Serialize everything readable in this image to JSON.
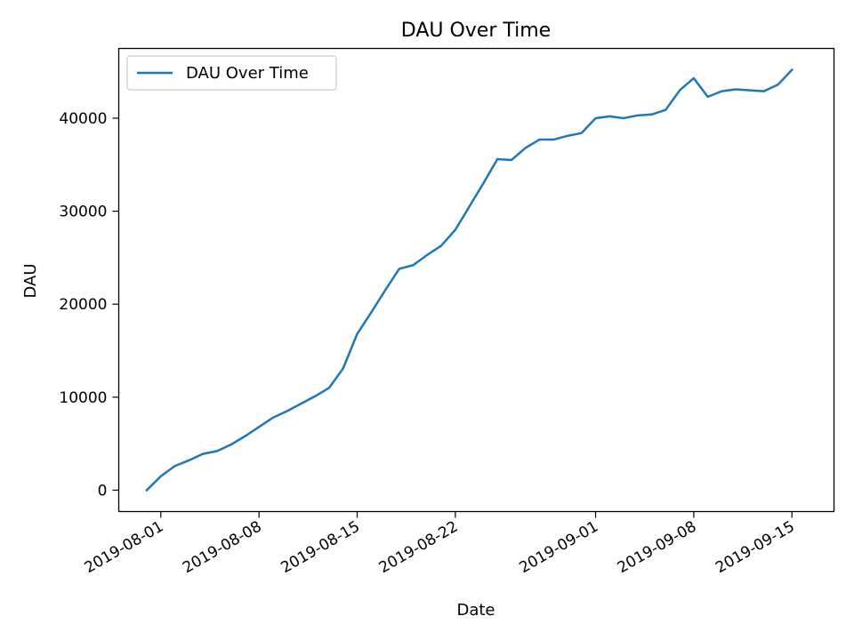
{
  "chart_data": {
    "type": "line",
    "title": "DAU Over Time",
    "xlabel": "Date",
    "ylabel": "DAU",
    "x_type": "date",
    "xlim": [
      "2019-07-29",
      "2019-09-18"
    ],
    "ylim": [
      -2300,
      47500
    ],
    "x_ticks": [
      "2019-08-01",
      "2019-08-08",
      "2019-08-15",
      "2019-08-22",
      "2019-09-01",
      "2019-09-08",
      "2019-09-15"
    ],
    "y_ticks": [
      0,
      10000,
      20000,
      30000,
      40000
    ],
    "legend": {
      "position": "upper-left"
    },
    "grid": false,
    "series": [
      {
        "name": "DAU Over Time",
        "color": "#1f77b4",
        "x": [
          "2019-07-31",
          "2019-08-01",
          "2019-08-02",
          "2019-08-03",
          "2019-08-04",
          "2019-08-05",
          "2019-08-06",
          "2019-08-07",
          "2019-08-08",
          "2019-08-09",
          "2019-08-10",
          "2019-08-11",
          "2019-08-12",
          "2019-08-13",
          "2019-08-14",
          "2019-08-15",
          "2019-08-16",
          "2019-08-17",
          "2019-08-18",
          "2019-08-19",
          "2019-08-20",
          "2019-08-21",
          "2019-08-22",
          "2019-08-23",
          "2019-08-24",
          "2019-08-25",
          "2019-08-26",
          "2019-08-27",
          "2019-08-28",
          "2019-08-29",
          "2019-08-30",
          "2019-08-31",
          "2019-09-01",
          "2019-09-02",
          "2019-09-03",
          "2019-09-04",
          "2019-09-05",
          "2019-09-06",
          "2019-09-07",
          "2019-09-08",
          "2019-09-09",
          "2019-09-10",
          "2019-09-11",
          "2019-09-12",
          "2019-09-13",
          "2019-09-14",
          "2019-09-15"
        ],
        "values": [
          0,
          1500,
          2600,
          3200,
          3900,
          4200,
          4900,
          5800,
          6800,
          7800,
          8500,
          9300,
          10100,
          11000,
          13100,
          16800,
          19100,
          21500,
          23800,
          24200,
          25300,
          26300,
          28000,
          30500,
          33000,
          35600,
          35500,
          36800,
          37700,
          37700,
          38100,
          38400,
          40000,
          40200,
          40000,
          40300,
          40400,
          40900,
          43000,
          44300,
          42300,
          42900,
          43100,
          43000,
          42900,
          43600,
          45200
        ]
      }
    ]
  }
}
